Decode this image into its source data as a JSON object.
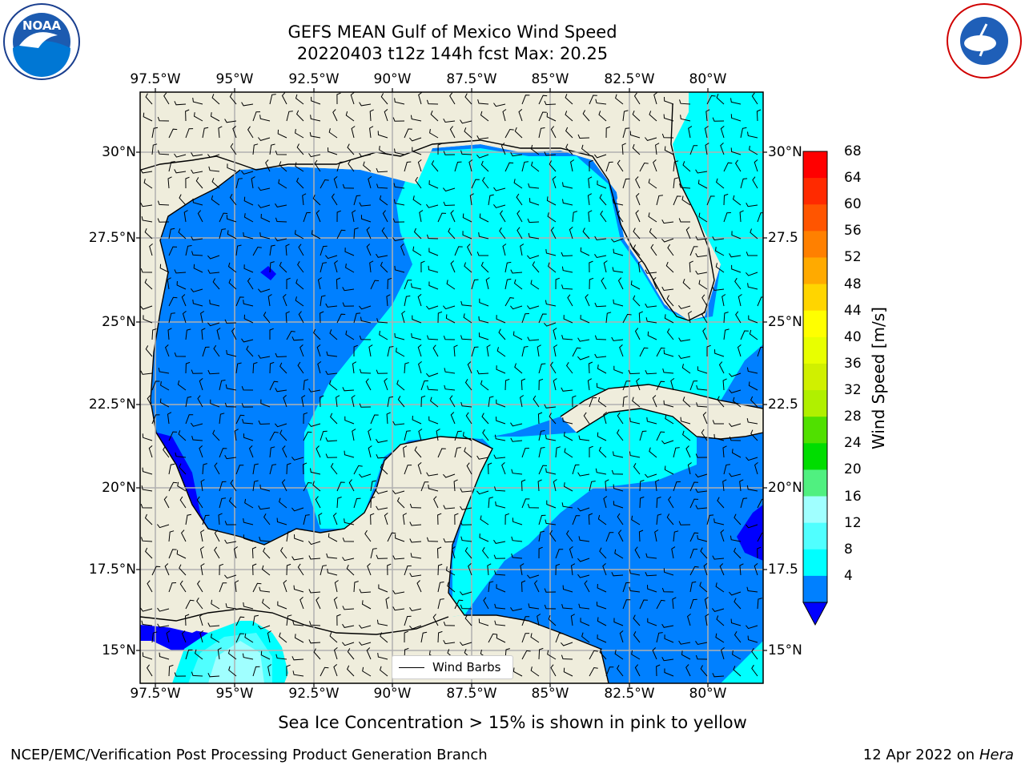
{
  "title": {
    "line1": "GEFS MEAN Gulf of Mexico Wind Speed",
    "line2": "20220403 t12z 144h fcst   Max: 20.25"
  },
  "axes": {
    "lon_ticks": [
      "97.5°W",
      "95°W",
      "92.5°W",
      "90°W",
      "87.5°W",
      "85°W",
      "82.5°W",
      "80°W"
    ],
    "lat_ticks": [
      "30°N",
      "27.5°N",
      "25°N",
      "22.5°N",
      "20°N",
      "17.5°N",
      "15°N"
    ],
    "lat_ticks_right": [
      "30°N",
      "27.5",
      "25°N",
      "22.5",
      "20°N",
      "17.5",
      "15°N"
    ]
  },
  "colorbar": {
    "label": "Wind Speed [m/s]",
    "ticks": [
      "68",
      "64",
      "60",
      "56",
      "52",
      "48",
      "44",
      "40",
      "36",
      "32",
      "28",
      "24",
      "20",
      "16",
      "12",
      "8",
      "4"
    ],
    "colors": [
      "#ff0000",
      "#ff2a00",
      "#ff5500",
      "#ff8000",
      "#ffaa00",
      "#ffd500",
      "#ffff00",
      "#e8ff00",
      "#d0f000",
      "#b0f000",
      "#50e000",
      "#00dd00",
      "#50f080",
      "#a0ffff",
      "#50ffff",
      "#00ffff",
      "#0080ff"
    ],
    "under_color": "#0000ff"
  },
  "legend": {
    "label": "Wind Barbs"
  },
  "caption": "Sea Ice Concentration > 15% is shown in pink to yellow",
  "footer": {
    "left": "NCEP/EMC/Verification Post Processing Product Generation Branch",
    "right_date": "12 Apr 2022 on ",
    "right_host": "Hera"
  },
  "logos": {
    "noaa": {
      "text": "NOAA"
    },
    "nws": {
      "text": "NATIONAL WEATHER SERVICE"
    }
  },
  "map_colors": {
    "land": "#efeddc",
    "band_4_8": "#0080ff",
    "band_8_12": "#00ffff",
    "band_12_16": "#50ffff",
    "band_16_20": "#a0ffff",
    "under_4": "#0000ff",
    "grid": "#b0b0b0"
  }
}
